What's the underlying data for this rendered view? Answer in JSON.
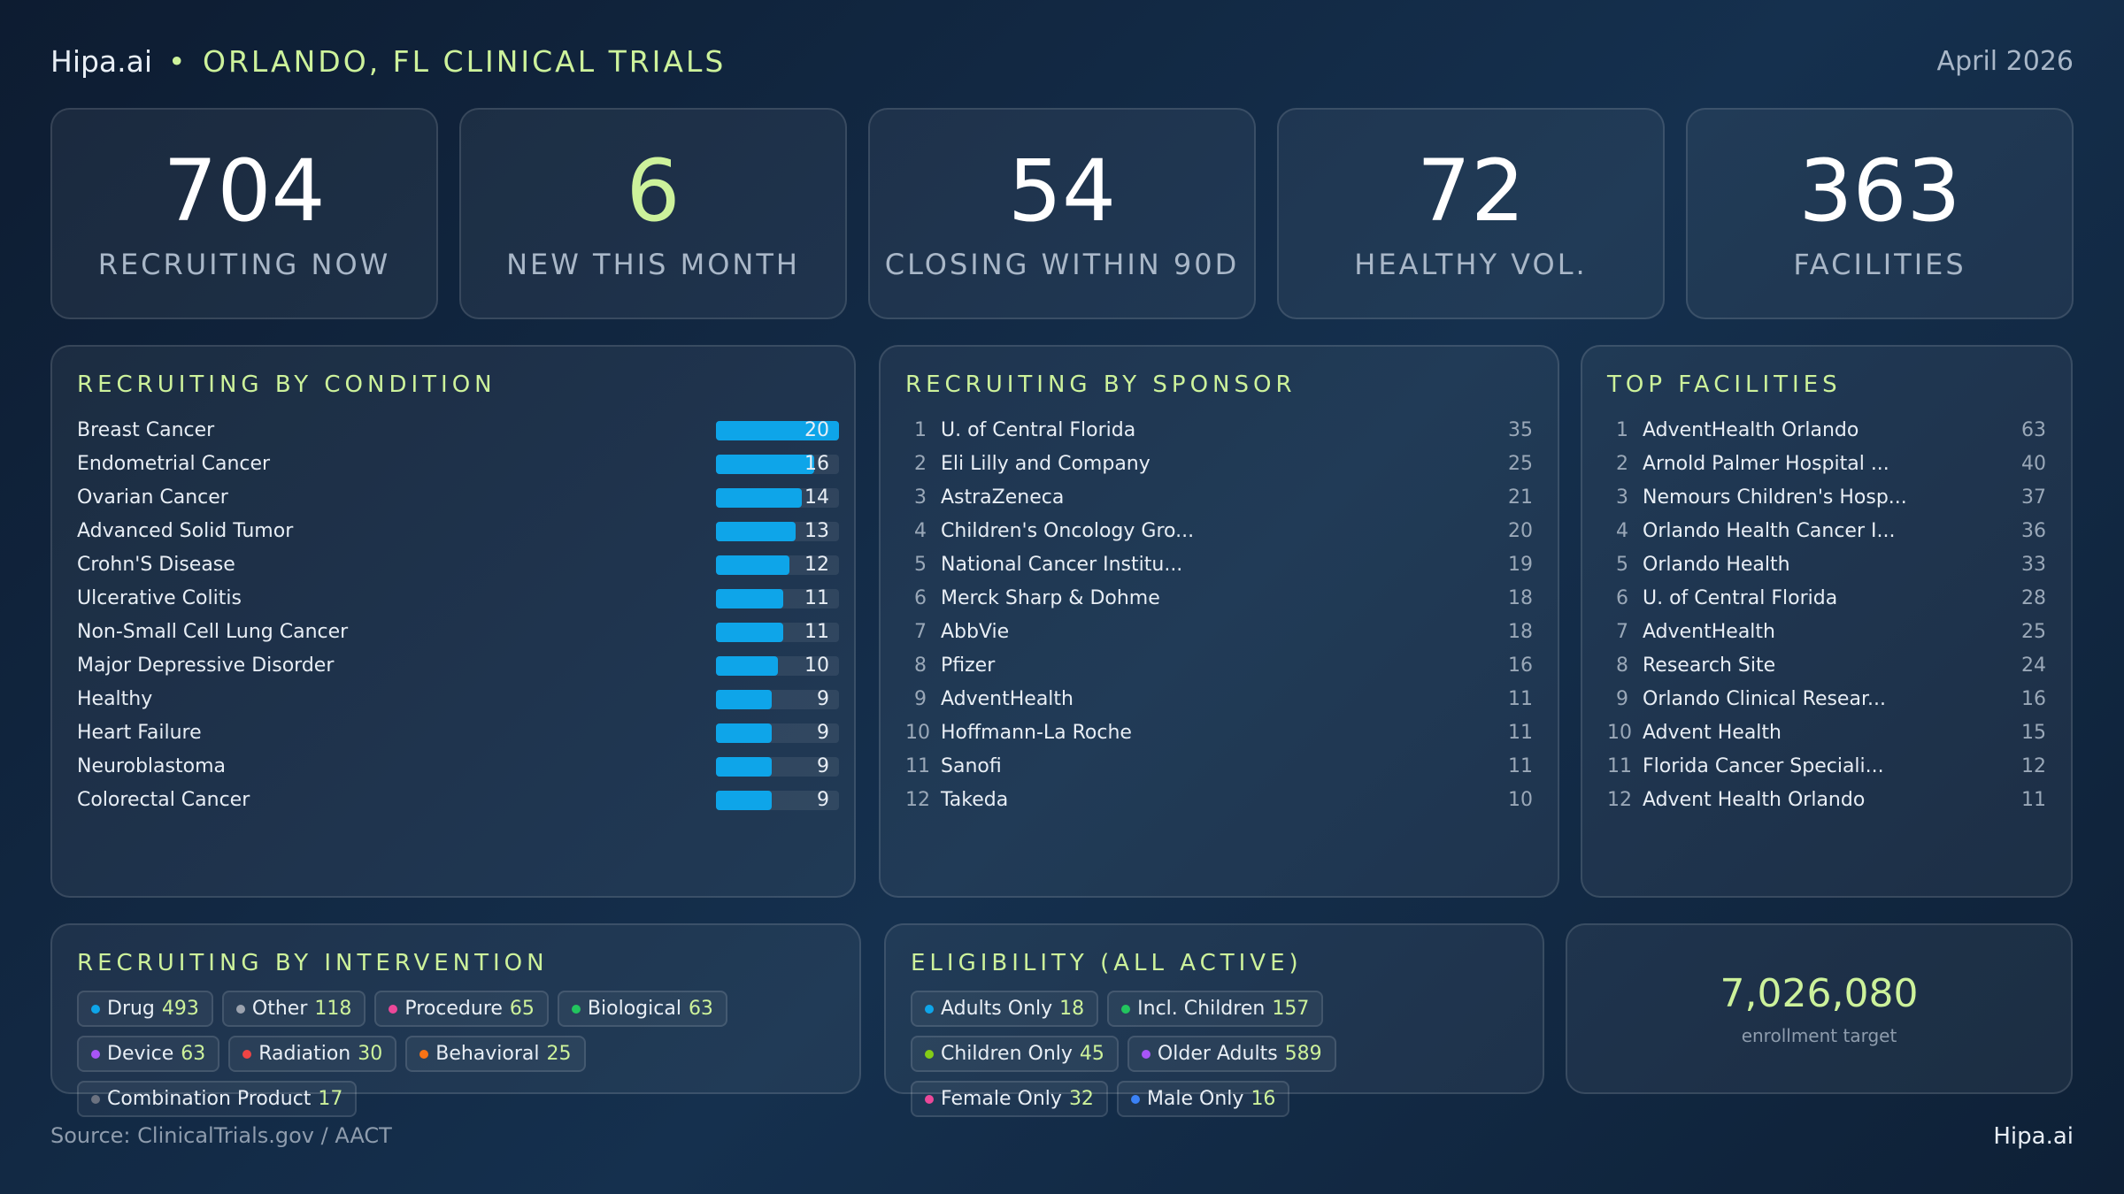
{
  "header": {
    "brand": "Hipa.ai",
    "title": "ORLANDO, FL CLINICAL TRIALS",
    "date": "April 2026"
  },
  "kpis": [
    {
      "value": 704,
      "label": "RECRUITING NOW"
    },
    {
      "value": 6,
      "label": "NEW THIS MONTH"
    },
    {
      "value": 54,
      "label": "CLOSING WITHIN 90D"
    },
    {
      "value": 72,
      "label": "HEALTHY VOL."
    },
    {
      "value": 363,
      "label": "FACILITIES"
    }
  ],
  "conditions": {
    "title": "RECRUITING BY CONDITION",
    "bar_color": "#0ea5e9",
    "items": [
      {
        "name": "Breast Cancer",
        "value": 20
      },
      {
        "name": "Endometrial Cancer",
        "value": 16
      },
      {
        "name": "Ovarian Cancer",
        "value": 14
      },
      {
        "name": "Advanced Solid Tumor",
        "value": 13
      },
      {
        "name": "Crohn'S Disease",
        "value": 12
      },
      {
        "name": "Ulcerative Colitis",
        "value": 11
      },
      {
        "name": "Non-Small Cell Lung Cancer",
        "value": 11
      },
      {
        "name": "Major Depressive Disorder",
        "value": 10
      },
      {
        "name": "Healthy",
        "value": 9
      },
      {
        "name": "Heart Failure",
        "value": 9
      },
      {
        "name": "Neuroblastoma",
        "value": 9
      },
      {
        "name": "Colorectal Cancer",
        "value": 9
      }
    ]
  },
  "sponsors": {
    "title": "RECRUITING BY SPONSOR",
    "items": [
      {
        "rank": 1,
        "name": "U. of Central Florida",
        "value": 35
      },
      {
        "rank": 2,
        "name": "Eli Lilly and Company",
        "value": 25
      },
      {
        "rank": 3,
        "name": "AstraZeneca",
        "value": 21
      },
      {
        "rank": 4,
        "name": "Children's Oncology Gro...",
        "value": 20
      },
      {
        "rank": 5,
        "name": "National Cancer Institu...",
        "value": 19
      },
      {
        "rank": 6,
        "name": "Merck Sharp & Dohme",
        "value": 18
      },
      {
        "rank": 7,
        "name": "AbbVie",
        "value": 18
      },
      {
        "rank": 8,
        "name": "Pfizer",
        "value": 16
      },
      {
        "rank": 9,
        "name": "AdventHealth",
        "value": 11
      },
      {
        "rank": 10,
        "name": "Hoffmann-La Roche",
        "value": 11
      },
      {
        "rank": 11,
        "name": "Sanofi",
        "value": 11
      },
      {
        "rank": 12,
        "name": "Takeda",
        "value": 10
      }
    ]
  },
  "facilities": {
    "title": "TOP FACILITIES",
    "items": [
      {
        "rank": 1,
        "name": "AdventHealth Orlando",
        "value": 63
      },
      {
        "rank": 2,
        "name": "Arnold Palmer Hospital ...",
        "value": 40
      },
      {
        "rank": 3,
        "name": "Nemours Children's Hosp...",
        "value": 37
      },
      {
        "rank": 4,
        "name": "Orlando Health Cancer I...",
        "value": 36
      },
      {
        "rank": 5,
        "name": "Orlando Health",
        "value": 33
      },
      {
        "rank": 6,
        "name": "U. of Central Florida",
        "value": 28
      },
      {
        "rank": 7,
        "name": "AdventHealth",
        "value": 25
      },
      {
        "rank": 8,
        "name": "Research Site",
        "value": 24
      },
      {
        "rank": 9,
        "name": "Orlando Clinical Resear...",
        "value": 16
      },
      {
        "rank": 10,
        "name": "Advent Health",
        "value": 15
      },
      {
        "rank": 11,
        "name": "Florida Cancer Speciali...",
        "value": 12
      },
      {
        "rank": 12,
        "name": "Advent Health Orlando",
        "value": 11
      }
    ]
  },
  "interventions": {
    "title": "RECRUITING BY INTERVENTION",
    "items": [
      {
        "name": "Drug",
        "value": 493,
        "color": "#0ea5e9"
      },
      {
        "name": "Other",
        "value": 118,
        "color": "#9ca3af"
      },
      {
        "name": "Procedure",
        "value": 65,
        "color": "#ec4899"
      },
      {
        "name": "Biological",
        "value": 63,
        "color": "#22c55e"
      },
      {
        "name": "Device",
        "value": 63,
        "color": "#a855f7"
      },
      {
        "name": "Radiation",
        "value": 30,
        "color": "#ef4444"
      },
      {
        "name": "Behavioral",
        "value": 25,
        "color": "#f97316"
      },
      {
        "name": "Combination Product",
        "value": 17,
        "color": "#6b7280"
      }
    ]
  },
  "eligibility": {
    "title": "ELIGIBILITY (ALL ACTIVE)",
    "items": [
      {
        "name": "Adults Only",
        "value": 18,
        "color": "#0ea5e9"
      },
      {
        "name": "Incl. Children",
        "value": 157,
        "color": "#22c55e"
      },
      {
        "name": "Children Only",
        "value": 45,
        "color": "#84cc16"
      },
      {
        "name": "Older Adults",
        "value": 589,
        "color": "#a855f7"
      },
      {
        "name": "Female Only",
        "value": 32,
        "color": "#ec4899"
      },
      {
        "name": "Male Only",
        "value": 16,
        "color": "#3b82f6"
      }
    ]
  },
  "enrollment": {
    "value": "7,026,080",
    "label": "enrollment target"
  },
  "footer": {
    "source": "Source: ClinicalTrials.gov / AACT",
    "brand": "Hipa.ai"
  }
}
